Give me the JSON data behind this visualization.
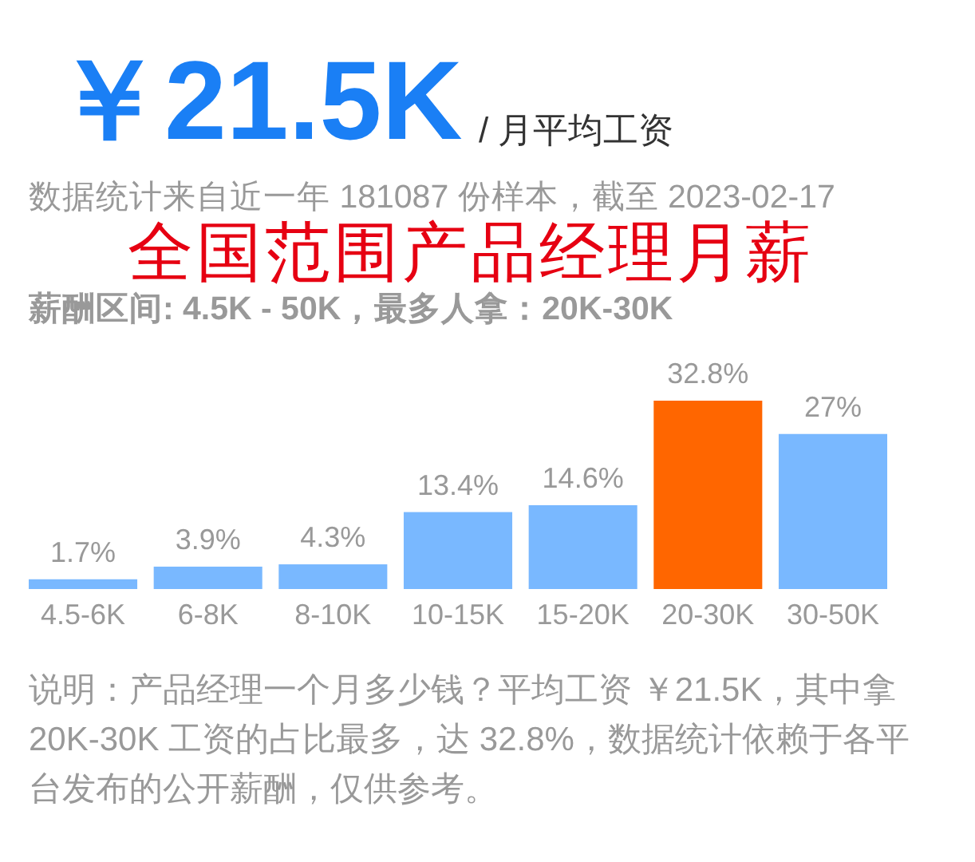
{
  "chart_data": {
    "type": "bar",
    "title": "全国范围产品经理月薪",
    "subtitle": "数据统计来自近一年 181087 份样本，截至 2023-02-17",
    "categories": [
      "4.5-6K",
      "6-8K",
      "8-10K",
      "10-15K",
      "15-20K",
      "20-30K",
      "30-50K"
    ],
    "values": [
      1.7,
      3.9,
      4.3,
      13.4,
      14.6,
      32.8,
      27
    ],
    "value_labels": [
      "1.7%",
      "3.9%",
      "4.3%",
      "13.4%",
      "14.6%",
      "32.8%",
      "27%"
    ],
    "colors": [
      "#79b8ff",
      "#79b8ff",
      "#79b8ff",
      "#79b8ff",
      "#79b8ff",
      "#ff6600",
      "#79b8ff"
    ],
    "annotations": [
      "￥21.5K",
      "/ 月平均工资",
      "薪酬区间: 4.5K - 50K，最多人拿：20K-30K",
      "说明：产品经理一个月多少钱？平均工资 ￥21.5K，其中拿 20K-30K 工资的占比最多，达 32.8%，数据统计依赖于各平台发布的公开薪酬，仅供参考。"
    ]
  }
}
